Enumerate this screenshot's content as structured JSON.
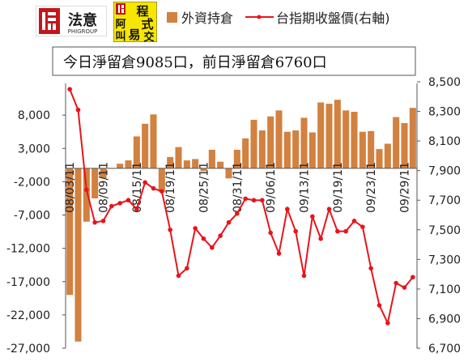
{
  "logos": {
    "logo1_chars": "法意",
    "logo1_sub": "PHIGROUP",
    "logo2_chars": [
      "阿",
      "程",
      "叫",
      "式",
      "易",
      "交"
    ]
  },
  "chart_data": {
    "type": "bar+line",
    "annotation": "今日淨留倉9085口，前日淨留倉6760口",
    "legend": {
      "bar": "外資持倉",
      "line": "台指期收盤價(右軸)"
    },
    "colors": {
      "bar": "#d2813f",
      "line": "#e8141b"
    },
    "x_labels": [
      "08/03/11",
      "08/09/11",
      "08/15/11",
      "08/19/11",
      "08/25/11",
      "08/31/11",
      "09/06/11",
      "09/13/11",
      "09/19/11",
      "09/23/11",
      "09/29/11"
    ],
    "x_label_indices": [
      0,
      4,
      8,
      12,
      16,
      20,
      24,
      28,
      32,
      36,
      40
    ],
    "left_axis": {
      "min": -27000,
      "max": 13000,
      "ticks": [
        8000,
        3000,
        -2000,
        -7000,
        -12000,
        -17000,
        -22000,
        -27000
      ],
      "tick_labels": [
        "8,000",
        "3,000",
        "-2,000",
        "-7,000",
        "-12,000",
        "-17,000",
        "-22,000",
        "-27,000"
      ]
    },
    "right_axis": {
      "min": 6700,
      "max": 8500,
      "ticks": [
        8500,
        8300,
        8100,
        7900,
        7700,
        7500,
        7300,
        7100,
        6900,
        6700
      ],
      "tick_labels": [
        "8,500",
        "8,300",
        "8,100",
        "7,900",
        "7,700",
        "7,500",
        "7,300",
        "7,100",
        "6,900",
        "6,700"
      ]
    },
    "series": [
      {
        "name": "外資持倉",
        "axis": "left",
        "values": [
          -19000,
          -26000,
          -8000,
          -4500,
          -1500,
          0,
          700,
          1200,
          4800,
          6700,
          8100,
          -3500,
          1700,
          3200,
          1200,
          1400,
          -400,
          2800,
          1000,
          -1500,
          2800,
          4500,
          7300,
          5700,
          7800,
          8700,
          5500,
          5700,
          7600,
          5400,
          9900,
          9700,
          10300,
          8700,
          8500,
          5500,
          5600,
          2900,
          3700,
          7700,
          6800,
          9085
        ]
      },
      {
        "name": "台指期收盤價(右軸)",
        "axis": "right",
        "values": [
          8450,
          8310,
          7770,
          7550,
          7560,
          7660,
          7680,
          7700,
          7640,
          7820,
          7780,
          7760,
          7500,
          7190,
          7240,
          7510,
          7440,
          7380,
          7460,
          7550,
          7610,
          7710,
          7700,
          7700,
          7480,
          7340,
          7640,
          7490,
          7190,
          7590,
          7440,
          7640,
          7490,
          7490,
          7560,
          7520,
          7240,
          6990,
          6870,
          7140,
          7110,
          7180
        ]
      }
    ]
  }
}
